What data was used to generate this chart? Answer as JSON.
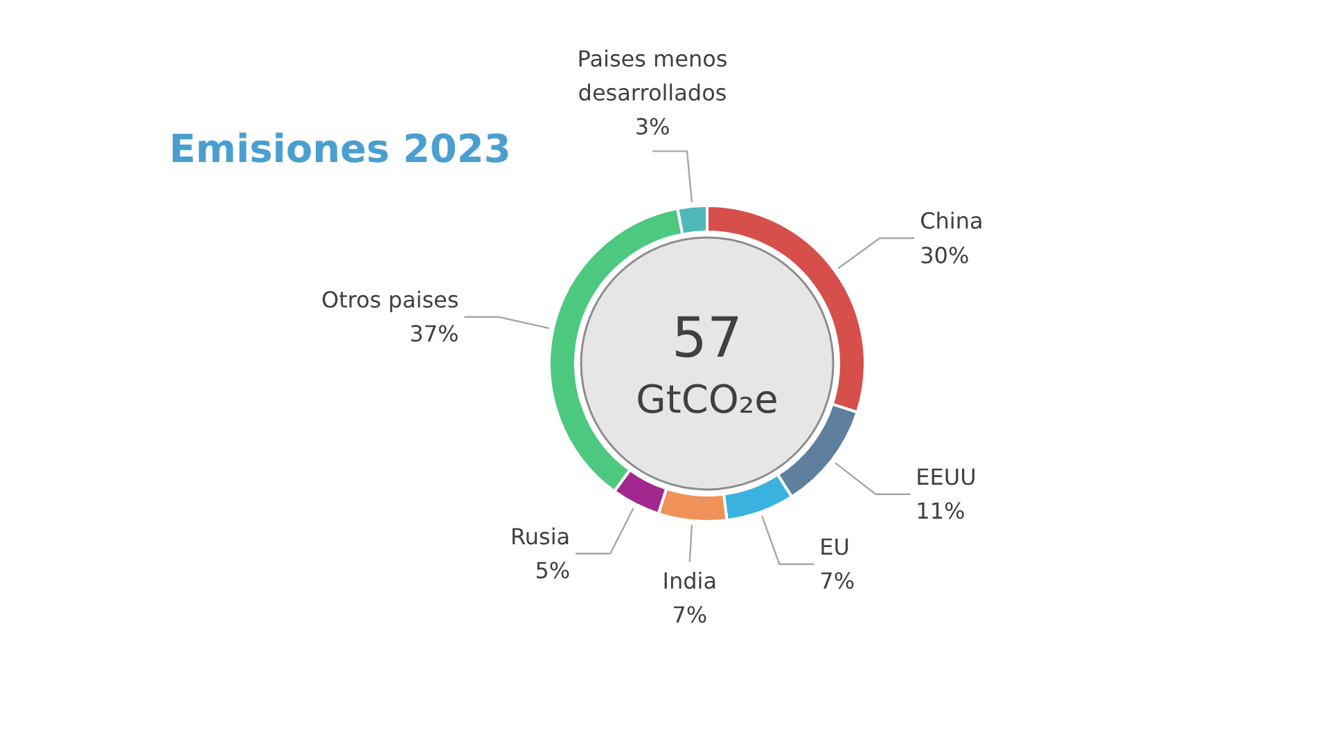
{
  "chart_data": {
    "type": "donut",
    "title": "Emisiones 2023",
    "categories": [
      "China",
      "EEUU",
      "EU",
      "India",
      "Rusia",
      "Otros paises",
      "Paises menos desarrollados"
    ],
    "values": [
      30,
      11,
      7,
      7,
      5,
      37,
      3
    ],
    "value_labels": [
      "30%",
      "11%",
      "7%",
      "7%",
      "5%",
      "37%",
      "3%"
    ],
    "colors": [
      "#d64f4b",
      "#5f7f9f",
      "#3bb3e0",
      "#f0915a",
      "#a0288f",
      "#4cc97f",
      "#4fb8b8"
    ],
    "annotations": [
      "57",
      "GtCO₂e"
    ]
  }
}
